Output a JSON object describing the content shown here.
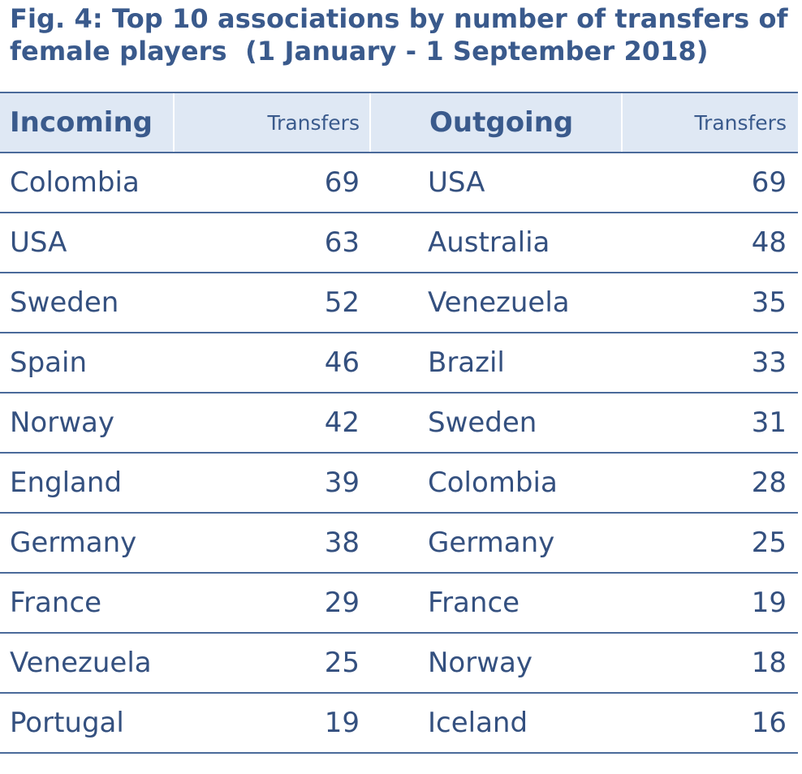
{
  "title": "Fig. 4: Top 10 associations by number of transfers of\nfemale players  (1 January - 1 September 2018)",
  "headers": {
    "incoming": "Incoming",
    "incoming_transfers": "Transfers",
    "outgoing": "Outgoing",
    "outgoing_transfers": "Transfers"
  },
  "rows": [
    {
      "in_name": "Colombia",
      "in_value": "69",
      "out_name": "USA",
      "out_value": "69"
    },
    {
      "in_name": "USA",
      "in_value": "63",
      "out_name": "Australia",
      "out_value": "48"
    },
    {
      "in_name": "Sweden",
      "in_value": "52",
      "out_name": "Venezuela",
      "out_value": "35"
    },
    {
      "in_name": "Spain",
      "in_value": "46",
      "out_name": "Brazil",
      "out_value": "33"
    },
    {
      "in_name": "Norway",
      "in_value": "42",
      "out_name": "Sweden",
      "out_value": "31"
    },
    {
      "in_name": "England",
      "in_value": "39",
      "out_name": "Colombia",
      "out_value": "28"
    },
    {
      "in_name": "Germany",
      "in_value": "38",
      "out_name": "Germany",
      "out_value": "25"
    },
    {
      "in_name": "France",
      "in_value": "29",
      "out_name": "France",
      "out_value": "19"
    },
    {
      "in_name": "Venezuela",
      "in_value": "25",
      "out_name": "Norway",
      "out_value": "18"
    },
    {
      "in_name": "Portugal",
      "in_value": "19",
      "out_name": "Iceland",
      "out_value": "16"
    }
  ],
  "colors": {
    "text": "#34507f",
    "header_bg": "#dfe8f4",
    "rule": "#4a6a9a"
  }
}
